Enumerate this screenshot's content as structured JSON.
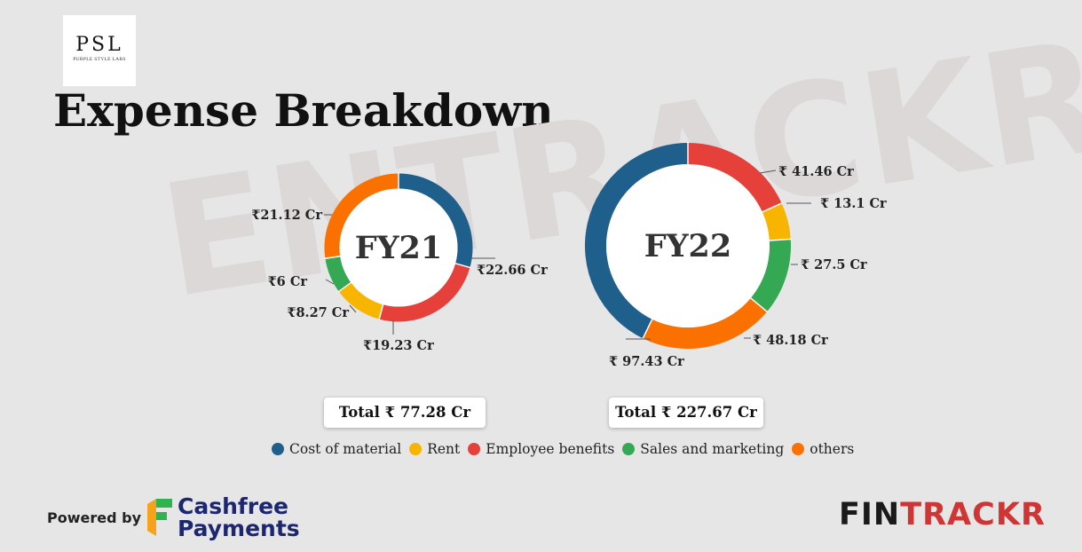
{
  "logo": {
    "main": "PSL",
    "sub": "PURPLE STYLE LABS"
  },
  "title": "Expense Breakdown",
  "watermark": "ENTRACKR",
  "colors": {
    "cost_of_material": "#1f5f8b",
    "rent": "#f7b500",
    "employee_benefits": "#e5413a",
    "sales_and_marketing": "#35a853",
    "others": "#fb7100"
  },
  "chart_data": [
    {
      "type": "pie",
      "variant": "donut",
      "title": "FY21",
      "categories": [
        "Cost of material",
        "Employee benefits",
        "Rent",
        "Sales and marketing",
        "others"
      ],
      "values": [
        22.66,
        19.23,
        8.27,
        6.0,
        21.12
      ],
      "value_labels": [
        "₹22.66 Cr",
        "₹19.23 Cr",
        "₹8.27 Cr",
        "₹6 Cr",
        "₹21.12 Cr"
      ],
      "total_label": "Total ₹ 77.28 Cr"
    },
    {
      "type": "pie",
      "variant": "donut",
      "title": "FY22",
      "categories": [
        "Employee benefits",
        "Rent",
        "Sales and marketing",
        "others",
        "Cost of material"
      ],
      "values": [
        41.46,
        13.1,
        27.5,
        48.18,
        97.43
      ],
      "value_labels": [
        "₹ 41.46 Cr",
        "₹ 13.1 Cr",
        "₹ 27.5 Cr",
        "₹ 48.18 Cr",
        "₹ 97.43 Cr"
      ],
      "total_label": "Total ₹ 227.67 Cr"
    }
  ],
  "legend": [
    {
      "label": "Cost of material",
      "color": "#1f5f8b"
    },
    {
      "label": "Rent",
      "color": "#f7b500"
    },
    {
      "label": "Employee benefits",
      "color": "#e5413a"
    },
    {
      "label": "Sales and marketing",
      "color": "#35a853"
    },
    {
      "label": "others",
      "color": "#fb7100"
    }
  ],
  "footer": {
    "powered_by": "Powered by",
    "cashfree_line1": "Cashfree",
    "cashfree_line2": "Payments",
    "fintrackr_a": "FIN",
    "fintrackr_b": "TRACKR"
  }
}
